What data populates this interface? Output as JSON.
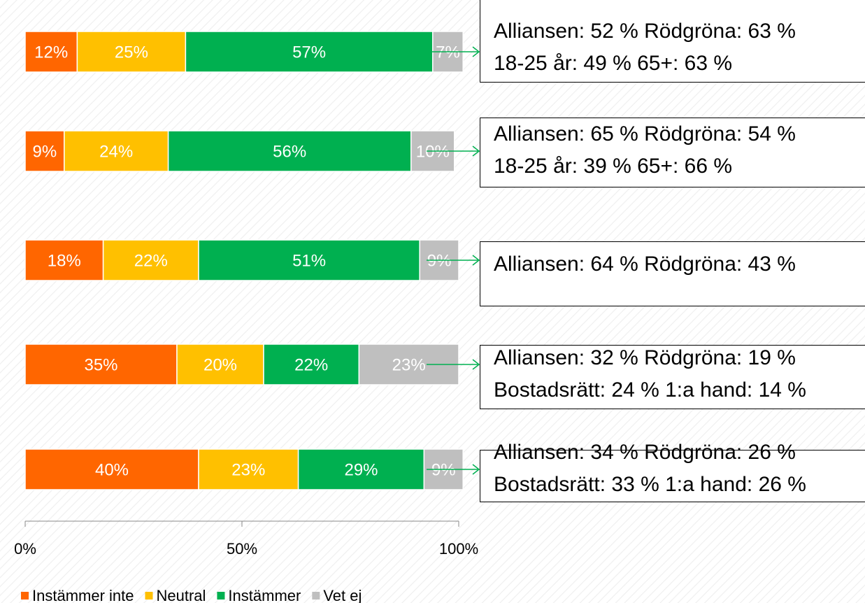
{
  "chart_data": {
    "type": "stacked-bar-horizontal",
    "categories": [
      null,
      null,
      null,
      null,
      null
    ],
    "series": [
      {
        "name": "Instämmer inte",
        "color": "#ff6600",
        "values": [
          12,
          9,
          18,
          35,
          40
        ],
        "value_labels": [
          "12%",
          "9%",
          "18%",
          "35%",
          "40%"
        ]
      },
      {
        "name": "Neutral",
        "color": "#ffc000",
        "values": [
          25,
          24,
          22,
          20,
          23
        ],
        "value_labels": [
          "25%",
          "24%",
          "22%",
          "20%",
          "23%"
        ]
      },
      {
        "name": "Instämmer",
        "color": "#00b050",
        "values": [
          57,
          56,
          51,
          22,
          29
        ],
        "value_labels": [
          "57%",
          "56%",
          "51%",
          "22%",
          "29%"
        ]
      },
      {
        "name": "Vet ej",
        "color": "#bfbfbf",
        "values": [
          7,
          10,
          9,
          23,
          9
        ],
        "value_labels": [
          "7%",
          "10%",
          "9%",
          "23%",
          "9%"
        ]
      }
    ],
    "xlim": [
      0,
      100
    ],
    "xticks": [
      {
        "value": 0,
        "label": "0%"
      },
      {
        "value": 50,
        "label": "50%"
      },
      {
        "value": 100,
        "label": "100%"
      }
    ],
    "legend": "bottom-left",
    "annotations": [
      {
        "lines": [
          "Alliansen: 52 % Rödgröna: 63 %",
          "18-25 år: 49 % 65+: 63 %"
        ]
      },
      {
        "lines": [
          "Alliansen: 65 % Rödgröna: 54 %",
          "18-25 år: 39 % 65+: 66 %"
        ]
      },
      {
        "lines": [
          "Alliansen: 64 % Rödgröna: 43 %"
        ]
      },
      {
        "lines": [
          "Alliansen: 32 % Rödgröna: 19 %",
          "Bostadsrätt: 24 % 1:a hand: 14 %"
        ]
      },
      {
        "lines": [
          "Alliansen: 34 %  Rödgröna: 26 %",
          "Bostadsrätt: 33 %  1:a hand: 26 %"
        ]
      }
    ]
  }
}
